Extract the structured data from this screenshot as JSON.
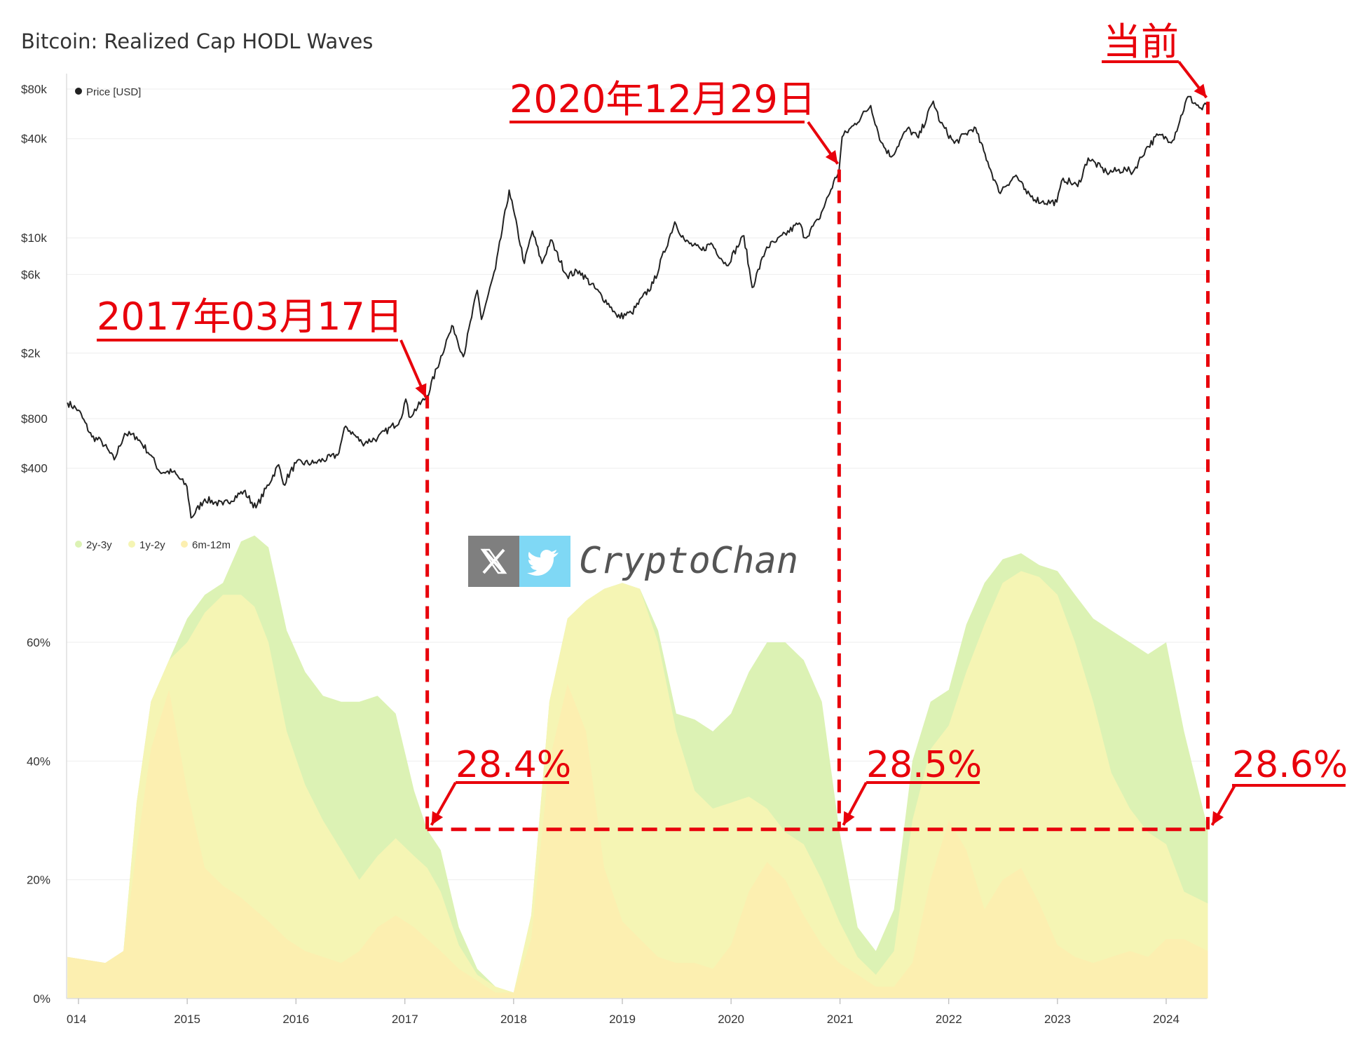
{
  "title": "Bitcoin: Realized Cap HODL Waves",
  "watermark": {
    "text": "CryptoChan",
    "icon_x": "x-logo-icon",
    "icon_bird": "twitter-bird-icon",
    "x_bg": "#7f7f7f",
    "bird_bg": "#7fd8f5"
  },
  "annotations": {
    "current": "当前",
    "date_2020": "2020年12月29日",
    "date_2017": "2017年03月17日",
    "pct_2017": "28.4%",
    "pct_2020": "28.5%",
    "pct_now": "28.6%",
    "color": "#e8000b"
  },
  "chart_data": [
    {
      "type": "line",
      "legend": [
        "Price [USD]"
      ],
      "legend_placement": "top-left",
      "y_scale": "log",
      "ylim": [
        130,
        80000
      ],
      "y_ticks": [
        {
          "value": 80000,
          "label": "$80k"
        },
        {
          "value": 40000,
          "label": "$40k"
        },
        {
          "value": 10000,
          "label": "$10k"
        },
        {
          "value": 6000,
          "label": "$6k"
        },
        {
          "value": 2000,
          "label": "$2k"
        },
        {
          "value": 800,
          "label": "$800"
        },
        {
          "value": 400,
          "label": "$400"
        }
      ],
      "color": "#222222",
      "series": [
        {
          "name": "Price [USD]",
          "x": [
            "2013-11-25",
            "2014-01-01",
            "2014-02-15",
            "2014-03-20",
            "2014-05-01",
            "2014-06-05",
            "2014-07-15",
            "2014-09-01",
            "2014-10-01",
            "2014-11-15",
            "2014-12-31",
            "2015-01-14",
            "2015-03-01",
            "2015-05-01",
            "2015-07-10",
            "2015-08-20",
            "2015-11-04",
            "2015-11-20",
            "2016-01-01",
            "2016-03-01",
            "2016-05-20",
            "2016-06-16",
            "2016-08-10",
            "2016-10-01",
            "2016-12-15",
            "2017-01-04",
            "2017-01-15",
            "2017-03-17",
            "2017-05-25",
            "2017-06-12",
            "2017-07-16",
            "2017-09-01",
            "2017-09-15",
            "2017-11-01",
            "2017-12-17",
            "2018-02-06",
            "2018-03-05",
            "2018-04-06",
            "2018-05-05",
            "2018-06-29",
            "2018-08-10",
            "2018-11-25",
            "2018-12-15",
            "2019-02-01",
            "2019-04-15",
            "2019-06-26",
            "2019-08-01",
            "2019-09-25",
            "2019-10-26",
            "2019-12-17",
            "2020-02-13",
            "2020-03-12",
            "2020-04-30",
            "2020-06-01",
            "2020-08-17",
            "2020-09-05",
            "2020-10-21",
            "2020-12-29",
            "2021-01-08",
            "2021-02-15",
            "2021-04-14",
            "2021-05-19",
            "2021-06-22",
            "2021-08-15",
            "2021-09-21",
            "2021-11-10",
            "2021-12-04",
            "2022-01-20",
            "2022-03-28",
            "2022-05-12",
            "2022-06-18",
            "2022-08-15",
            "2022-09-20",
            "2022-11-09",
            "2022-12-30",
            "2023-01-20",
            "2023-03-10",
            "2023-04-14",
            "2023-06-15",
            "2023-08-18",
            "2023-09-11",
            "2023-10-24",
            "2023-12-05",
            "2024-01-23",
            "2024-03-14",
            "2024-05-01",
            "2024-05-20"
          ],
          "values": [
            1000,
            900,
            620,
            580,
            450,
            650,
            620,
            480,
            380,
            380,
            310,
            200,
            260,
            240,
            290,
            230,
            420,
            320,
            430,
            430,
            480,
            720,
            570,
            610,
            780,
            1050,
            820,
            1100,
            2500,
            2900,
            1900,
            4800,
            3200,
            6500,
            19500,
            7000,
            11000,
            7000,
            9700,
            5900,
            6300,
            3800,
            3300,
            3500,
            5300,
            12500,
            9500,
            8400,
            9300,
            6800,
            10300,
            5000,
            8800,
            9500,
            12300,
            10000,
            12900,
            26000,
            41000,
            48000,
            63500,
            38000,
            31000,
            46000,
            40500,
            67500,
            50000,
            37500,
            47000,
            29000,
            19000,
            24000,
            18500,
            16500,
            16500,
            23000,
            20500,
            30500,
            25000,
            26000,
            25000,
            34500,
            42000,
            39000,
            72000,
            60000,
            67000
          ]
        }
      ]
    },
    {
      "type": "area",
      "stacked": true,
      "legend": [
        "2y-3y",
        "1y-2y",
        "6m-12m"
      ],
      "legend_placement": "top-left",
      "ylim": [
        0,
        80
      ],
      "y_ticks": [
        {
          "value": 60,
          "label": "60%"
        },
        {
          "value": 40,
          "label": "40%"
        },
        {
          "value": 20,
          "label": "20%"
        },
        {
          "value": 0,
          "label": "0%"
        }
      ],
      "x_ticks": [
        {
          "x": "2014-01-01",
          "label": "014"
        },
        {
          "x": "2015-01-01",
          "label": "2015"
        },
        {
          "x": "2016-01-01",
          "label": "2016"
        },
        {
          "x": "2017-01-01",
          "label": "2017"
        },
        {
          "x": "2018-01-01",
          "label": "2018"
        },
        {
          "x": "2019-01-01",
          "label": "2019"
        },
        {
          "x": "2020-01-01",
          "label": "2020"
        },
        {
          "x": "2021-01-01",
          "label": "2021"
        },
        {
          "x": "2022-01-01",
          "label": "2022"
        },
        {
          "x": "2023-01-01",
          "label": "2023"
        },
        {
          "x": "2024-01-01",
          "label": "2024"
        }
      ],
      "x": [
        "2013-11-25",
        "2014-04-01",
        "2014-06-01",
        "2014-07-15",
        "2014-09-01",
        "2014-11-01",
        "2015-01-01",
        "2015-03-01",
        "2015-05-01",
        "2015-07-01",
        "2015-08-15",
        "2015-10-01",
        "2015-12-01",
        "2016-02-01",
        "2016-04-01",
        "2016-06-01",
        "2016-08-01",
        "2016-10-01",
        "2016-12-01",
        "2017-02-01",
        "2017-03-17",
        "2017-05-01",
        "2017-07-01",
        "2017-09-01",
        "2017-11-01",
        "2018-01-01",
        "2018-03-01",
        "2018-05-01",
        "2018-07-01",
        "2018-09-01",
        "2018-11-01",
        "2019-01-01",
        "2019-03-01",
        "2019-05-01",
        "2019-07-01",
        "2019-09-01",
        "2019-11-01",
        "2020-01-01",
        "2020-03-01",
        "2020-05-01",
        "2020-07-01",
        "2020-09-01",
        "2020-11-01",
        "2020-12-29",
        "2021-03-01",
        "2021-05-01",
        "2021-07-01",
        "2021-09-01",
        "2021-11-01",
        "2022-01-01",
        "2022-03-01",
        "2022-05-01",
        "2022-07-01",
        "2022-09-01",
        "2022-11-01",
        "2023-01-01",
        "2023-03-01",
        "2023-05-01",
        "2023-07-01",
        "2023-09-01",
        "2023-11-01",
        "2024-01-01",
        "2024-03-01",
        "2024-05-20"
      ],
      "series": [
        {
          "name": "6m-12m",
          "color": "#fcefb0",
          "values": [
            7,
            6,
            8,
            25,
            42,
            52,
            35,
            22,
            19,
            17,
            15,
            13,
            10,
            8,
            7,
            6,
            8,
            12,
            14,
            12,
            10,
            8,
            5,
            3,
            1,
            1,
            10,
            40,
            53,
            45,
            22,
            13,
            10,
            7,
            6,
            6,
            5,
            9,
            18,
            23,
            20,
            14,
            9,
            6,
            4,
            2,
            2,
            6,
            20,
            30,
            25,
            15,
            20,
            22,
            16,
            9,
            7,
            6,
            7,
            8,
            7,
            10,
            10,
            8
          ]
        },
        {
          "name": "1y-2y",
          "color": "#f5f5b4",
          "values": [
            7,
            6,
            8,
            33,
            50,
            57,
            60,
            65,
            68,
            68,
            66,
            60,
            45,
            36,
            30,
            25,
            20,
            24,
            27,
            24,
            22,
            18,
            9,
            4,
            2,
            1,
            14,
            50,
            64,
            67,
            69,
            70,
            69,
            60,
            45,
            35,
            32,
            33,
            34,
            32,
            28,
            26,
            20,
            13,
            7,
            4,
            8,
            30,
            42,
            46,
            55,
            63,
            70,
            72,
            71,
            68,
            60,
            50,
            38,
            32,
            28,
            26,
            18,
            16
          ]
        },
        {
          "name": "2y-3y",
          "color": "#dcf2b4",
          "values": [
            7,
            6,
            8,
            33,
            50,
            57,
            64,
            68,
            70,
            77,
            78,
            76,
            62,
            55,
            51,
            50,
            50,
            51,
            48,
            35,
            28.4,
            25,
            12,
            5,
            2,
            1,
            14,
            50,
            64,
            67,
            69,
            70,
            69,
            62,
            48,
            47,
            45,
            48,
            55,
            60,
            60,
            57,
            50,
            28.5,
            12,
            8,
            15,
            40,
            50,
            52,
            63,
            70,
            74,
            75,
            73,
            72,
            68,
            64,
            62,
            60,
            58,
            60,
            45,
            28.6
          ]
        }
      ]
    }
  ]
}
